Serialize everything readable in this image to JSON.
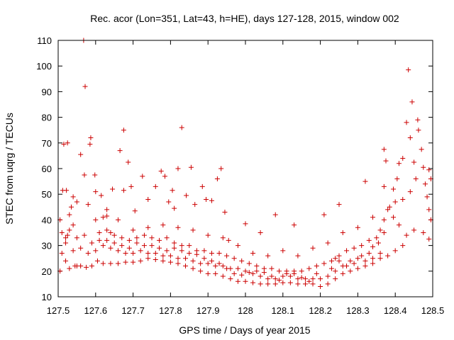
{
  "chart_data": {
    "type": "scatter",
    "title": "Rec. acor (Lon=351, Lat=43, h=HE), days 127-128, 2015, window 002",
    "xlabel": "GPS time / Days of year 2015",
    "ylabel": "STEC from uqrg / TECUs",
    "xlim": [
      127.5,
      128.5
    ],
    "ylim": [
      10,
      110
    ],
    "xticks": [
      "127.5",
      "127.6",
      "127.7",
      "127.8",
      "127.9",
      "128",
      "128.1",
      "128.2",
      "128.3",
      "128.4",
      "128.5"
    ],
    "yticks": [
      "10",
      "20",
      "30",
      "40",
      "50",
      "60",
      "70",
      "80",
      "90",
      "100",
      "110"
    ],
    "grid": false,
    "legend": "none",
    "marker": "+",
    "marker_color": "#cc0000",
    "axis_color": "#000000",
    "background": "#ffffff",
    "points": [
      [
        127.505,
        20
      ],
      [
        127.51,
        27
      ],
      [
        127.52,
        31
      ],
      [
        127.53,
        36
      ],
      [
        127.54,
        38
      ],
      [
        127.55,
        22
      ],
      [
        127.505,
        40
      ],
      [
        127.51,
        35
      ],
      [
        127.52,
        33
      ],
      [
        127.525,
        34
      ],
      [
        127.53,
        42
      ],
      [
        127.535,
        45
      ],
      [
        127.512,
        51.5
      ],
      [
        127.522,
        51.5
      ],
      [
        127.54,
        49
      ],
      [
        127.55,
        47
      ],
      [
        127.515,
        69.5
      ],
      [
        127.525,
        70
      ],
      [
        127.56,
        65.5
      ],
      [
        127.57,
        57.5
      ],
      [
        127.572,
        92
      ],
      [
        127.568,
        110
      ],
      [
        127.58,
        46
      ],
      [
        127.585,
        69.5
      ],
      [
        127.587,
        72
      ],
      [
        127.598,
        57.5
      ],
      [
        127.6,
        51
      ],
      [
        127.615,
        49.5
      ],
      [
        127.63,
        41.5
      ],
      [
        127.63,
        44
      ],
      [
        127.64,
        35
      ],
      [
        127.645,
        52
      ],
      [
        127.665,
        67
      ],
      [
        127.675,
        75
      ],
      [
        127.687,
        62.5
      ],
      [
        127.675,
        51.5
      ],
      [
        127.695,
        53
      ],
      [
        127.705,
        43.5
      ],
      [
        127.725,
        57
      ],
      [
        127.74,
        48
      ],
      [
        127.76,
        53
      ],
      [
        127.775,
        59
      ],
      [
        127.785,
        57
      ],
      [
        127.795,
        47
      ],
      [
        127.805,
        51.5
      ],
      [
        127.81,
        44.5
      ],
      [
        127.82,
        60
      ],
      [
        127.83,
        76
      ],
      [
        127.842,
        49.5
      ],
      [
        127.855,
        60.5
      ],
      [
        127.865,
        46
      ],
      [
        127.885,
        53
      ],
      [
        127.895,
        48
      ],
      [
        127.91,
        47.5
      ],
      [
        127.925,
        56
      ],
      [
        127.935,
        60
      ],
      [
        127.945,
        43
      ],
      [
        127.955,
        32
      ],
      [
        127.52,
        24
      ],
      [
        127.53,
        21
      ],
      [
        127.545,
        22
      ],
      [
        127.56,
        22
      ],
      [
        127.575,
        21.5
      ],
      [
        127.59,
        22
      ],
      [
        127.605,
        24
      ],
      [
        127.62,
        23
      ],
      [
        127.64,
        23
      ],
      [
        127.66,
        23
      ],
      [
        127.68,
        23.5
      ],
      [
        127.7,
        23.5
      ],
      [
        127.72,
        24
      ],
      [
        127.74,
        25
      ],
      [
        127.76,
        24.5
      ],
      [
        127.78,
        24
      ],
      [
        127.8,
        23.5
      ],
      [
        127.82,
        23
      ],
      [
        127.84,
        22
      ],
      [
        127.86,
        21
      ],
      [
        127.88,
        20
      ],
      [
        127.9,
        19
      ],
      [
        127.92,
        19
      ],
      [
        127.94,
        18
      ],
      [
        127.96,
        17
      ],
      [
        127.98,
        16
      ],
      [
        128.0,
        16
      ],
      [
        128.02,
        15.5
      ],
      [
        128.04,
        15
      ],
      [
        128.06,
        15
      ],
      [
        128.08,
        15
      ],
      [
        128.1,
        15.5
      ],
      [
        128.12,
        15.5
      ],
      [
        128.14,
        15
      ],
      [
        128.16,
        15
      ],
      [
        128.18,
        15
      ],
      [
        128.2,
        14
      ],
      [
        128.22,
        15
      ],
      [
        128.24,
        17
      ],
      [
        128.26,
        19
      ],
      [
        128.28,
        20
      ],
      [
        128.3,
        21
      ],
      [
        128.32,
        22
      ],
      [
        128.34,
        23
      ],
      [
        128.36,
        25
      ],
      [
        128.38,
        26
      ],
      [
        128.4,
        28
      ],
      [
        128.42,
        30
      ],
      [
        127.54,
        28
      ],
      [
        127.56,
        29
      ],
      [
        127.58,
        27
      ],
      [
        127.6,
        28
      ],
      [
        127.62,
        30
      ],
      [
        127.64,
        29
      ],
      [
        127.66,
        28
      ],
      [
        127.68,
        27
      ],
      [
        127.7,
        27
      ],
      [
        127.72,
        28
      ],
      [
        127.74,
        27
      ],
      [
        127.76,
        27
      ],
      [
        127.78,
        26
      ],
      [
        127.8,
        26
      ],
      [
        127.82,
        25
      ],
      [
        127.84,
        25
      ],
      [
        127.86,
        24
      ],
      [
        127.88,
        23
      ],
      [
        127.9,
        23
      ],
      [
        127.92,
        22
      ],
      [
        127.94,
        22
      ],
      [
        127.96,
        21
      ],
      [
        127.98,
        21
      ],
      [
        128.0,
        20
      ],
      [
        128.02,
        19
      ],
      [
        128.04,
        18
      ],
      [
        128.06,
        17
      ],
      [
        128.08,
        17
      ],
      [
        128.1,
        18
      ],
      [
        128.12,
        18
      ],
      [
        128.14,
        17
      ],
      [
        128.16,
        17
      ],
      [
        128.18,
        17
      ],
      [
        128.2,
        17
      ],
      [
        128.22,
        18
      ],
      [
        128.24,
        20
      ],
      [
        128.26,
        22
      ],
      [
        128.28,
        24
      ],
      [
        128.3,
        25
      ],
      [
        128.32,
        24
      ],
      [
        128.34,
        25
      ],
      [
        128.36,
        27
      ],
      [
        127.55,
        33
      ],
      [
        127.57,
        34
      ],
      [
        127.59,
        31
      ],
      [
        127.61,
        35
      ],
      [
        127.63,
        36
      ],
      [
        127.65,
        34
      ],
      [
        127.67,
        33
      ],
      [
        127.69,
        32
      ],
      [
        127.71,
        33
      ],
      [
        127.73,
        34
      ],
      [
        127.75,
        33
      ],
      [
        127.77,
        32
      ],
      [
        127.79,
        33
      ],
      [
        127.81,
        31
      ],
      [
        127.83,
        30
      ],
      [
        127.85,
        30
      ],
      [
        127.87,
        28
      ],
      [
        127.89,
        28
      ],
      [
        127.91,
        27
      ],
      [
        127.93,
        27
      ],
      [
        127.95,
        26
      ],
      [
        127.97,
        25
      ],
      [
        127.99,
        24
      ],
      [
        128.01,
        23
      ],
      [
        128.03,
        22
      ],
      [
        128.05,
        21
      ],
      [
        128.07,
        21
      ],
      [
        128.09,
        20
      ],
      [
        128.11,
        20
      ],
      [
        128.13,
        20
      ],
      [
        128.15,
        20
      ],
      [
        128.17,
        21
      ],
      [
        128.19,
        22
      ],
      [
        128.21,
        23
      ],
      [
        128.23,
        24
      ],
      [
        128.25,
        26
      ],
      [
        128.27,
        28
      ],
      [
        128.29,
        29
      ],
      [
        128.31,
        30
      ],
      [
        128.33,
        32
      ],
      [
        128.35,
        33
      ],
      [
        128.37,
        35
      ],
      [
        127.6,
        40
      ],
      [
        127.62,
        41
      ],
      [
        127.66,
        40
      ],
      [
        127.7,
        36
      ],
      [
        127.74,
        37
      ],
      [
        127.78,
        38
      ],
      [
        127.82,
        37
      ],
      [
        127.86,
        36
      ],
      [
        127.9,
        34
      ],
      [
        127.94,
        33
      ],
      [
        127.98,
        30
      ],
      [
        128.02,
        27
      ],
      [
        128.06,
        26
      ],
      [
        128.1,
        28
      ],
      [
        128.14,
        26
      ],
      [
        128.18,
        29
      ],
      [
        128.22,
        31
      ],
      [
        128.26,
        35
      ],
      [
        128.3,
        37
      ],
      [
        128.34,
        41
      ],
      [
        128.38,
        44
      ],
      [
        128.4,
        47
      ],
      [
        128.42,
        48
      ],
      [
        128.44,
        51
      ],
      [
        128.0,
        38.5
      ],
      [
        128.04,
        35
      ],
      [
        128.08,
        42
      ],
      [
        128.13,
        38
      ],
      [
        128.21,
        42
      ],
      [
        128.25,
        46
      ],
      [
        128.32,
        55
      ],
      [
        128.37,
        53
      ],
      [
        128.375,
        63
      ],
      [
        128.37,
        67.5
      ],
      [
        128.395,
        52
      ],
      [
        128.405,
        56
      ],
      [
        128.41,
        62
      ],
      [
        128.42,
        64
      ],
      [
        128.43,
        78
      ],
      [
        128.435,
        98.5
      ],
      [
        128.44,
        72
      ],
      [
        128.445,
        86
      ],
      [
        128.45,
        62.5
      ],
      [
        128.455,
        56
      ],
      [
        128.46,
        79
      ],
      [
        128.462,
        75
      ],
      [
        128.47,
        67.5
      ],
      [
        128.475,
        60.5
      ],
      [
        128.48,
        54
      ],
      [
        128.49,
        59.5
      ],
      [
        128.495,
        56
      ],
      [
        128.485,
        49
      ],
      [
        128.49,
        44
      ],
      [
        128.495,
        40
      ],
      [
        128.475,
        35
      ],
      [
        128.49,
        32.5
      ],
      [
        128.45,
        36
      ],
      [
        128.43,
        34
      ],
      [
        128.41,
        38
      ],
      [
        128.395,
        41
      ],
      [
        128.385,
        45
      ],
      [
        128.37,
        40
      ],
      [
        128.36,
        36
      ],
      [
        128.355,
        31
      ],
      [
        128.34,
        29.5
      ],
      [
        128.33,
        27
      ],
      [
        128.31,
        26
      ],
      [
        128.29,
        23
      ],
      [
        128.27,
        22
      ],
      [
        128.25,
        24
      ],
      [
        128.24,
        25
      ],
      [
        128.23,
        21
      ],
      [
        128.19,
        19
      ],
      [
        128.17,
        16
      ],
      [
        128.15,
        17.5
      ],
      [
        128.13,
        19
      ],
      [
        128.11,
        19
      ],
      [
        128.09,
        16.5
      ],
      [
        128.07,
        18
      ],
      [
        128.05,
        19.5
      ],
      [
        128.03,
        20
      ],
      [
        128.01,
        19.5
      ],
      [
        127.99,
        18.5
      ],
      [
        127.97,
        19
      ],
      [
        127.95,
        21
      ],
      [
        127.93,
        23
      ],
      [
        127.91,
        24
      ],
      [
        127.89,
        25
      ],
      [
        127.87,
        26.5
      ],
      [
        127.85,
        27
      ],
      [
        127.83,
        28
      ],
      [
        127.81,
        29
      ],
      [
        127.79,
        28
      ],
      [
        127.77,
        29
      ],
      [
        127.75,
        30
      ],
      [
        127.73,
        30
      ],
      [
        127.71,
        31
      ],
      [
        127.69,
        29
      ],
      [
        127.67,
        30
      ],
      [
        127.65,
        31
      ],
      [
        127.63,
        32
      ],
      [
        127.61,
        32
      ]
    ]
  }
}
